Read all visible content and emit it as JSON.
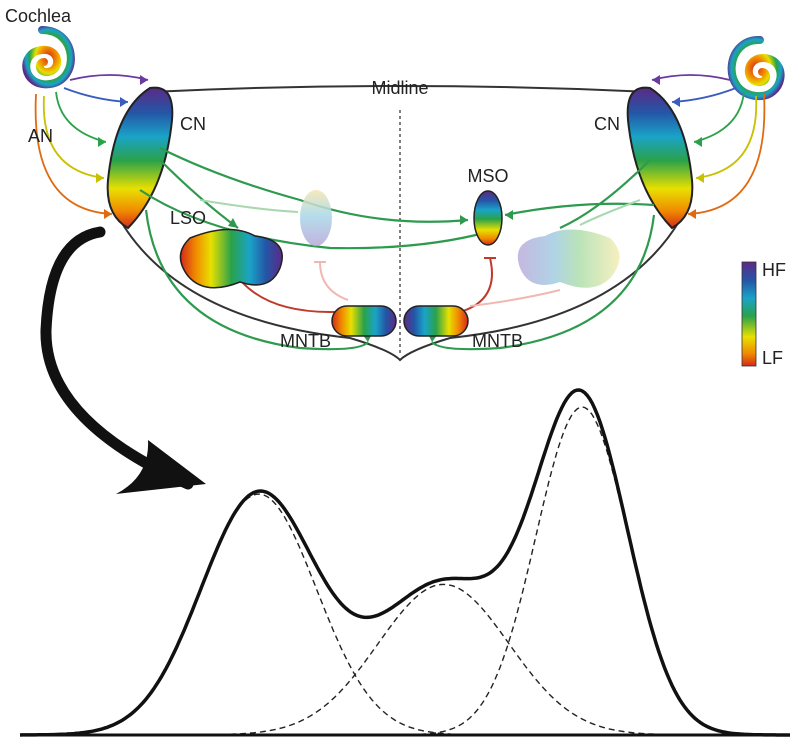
{
  "labels": {
    "cochlea": "Cochlea",
    "midline": "Midline",
    "an": "AN",
    "cn_left": "CN",
    "cn_right": "CN",
    "lso": "LSO",
    "mso": "MSO",
    "mntb_left": "MNTB",
    "mntb_right": "MNTB",
    "legend_high": "HF",
    "legend_low": "LF"
  },
  "colors": {
    "outline": "#333333",
    "projection": "#2e9a4e",
    "projection_faint": "#a8d8b0",
    "inhibitory": "#c0392b",
    "inhibitory_faint": "#f0b8b0",
    "tonotopic_gradient": [
      "#5b2a86",
      "#2456a6",
      "#1aa3c8",
      "#2aa24a",
      "#e8e000",
      "#f08a00",
      "#d42a1a"
    ]
  },
  "curve": {
    "description_components": 3,
    "component_peaks": [
      {
        "center": 0.31,
        "height": 0.72
      },
      {
        "center": 0.55,
        "height": 0.45
      },
      {
        "center": 0.73,
        "height": 0.98
      }
    ]
  }
}
